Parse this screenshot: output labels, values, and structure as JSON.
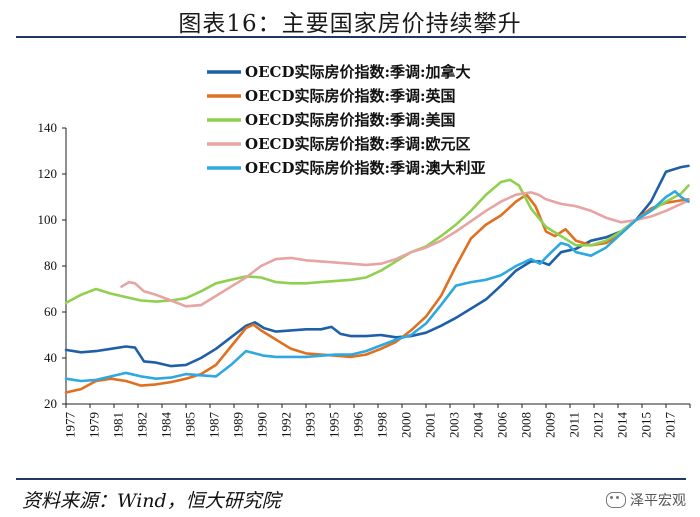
{
  "figure": {
    "title": "图表16：主要国家房价持续攀升",
    "source": "资料来源：Wind，恒大研究院",
    "watermark": "泽平宏观"
  },
  "chart_data": {
    "type": "line",
    "title": "图表16：主要国家房价持续攀升",
    "xlabel": "",
    "ylabel": "",
    "xlim": [
      1977,
      2018.6
    ],
    "ylim": [
      20,
      140
    ],
    "yticks": [
      20,
      40,
      60,
      80,
      100,
      120,
      140
    ],
    "xtick_labels": [
      "1977",
      "1979",
      "1981",
      "1982",
      "1984",
      "1985",
      "1987",
      "1989",
      "1990",
      "1992",
      "1993",
      "1995",
      "1996",
      "1998",
      "2000",
      "2001",
      "2003",
      "2004",
      "2006",
      "2008",
      "2009",
      "2011",
      "2012",
      "2014",
      "2015",
      "2017"
    ],
    "legend_position": "top-center",
    "series": [
      {
        "name": "OECD实际房价指数:季调:加拿大",
        "color": "#1f5fa8",
        "points": [
          [
            1977,
            43.5
          ],
          [
            1978,
            42.5
          ],
          [
            1979,
            43
          ],
          [
            1980,
            44
          ],
          [
            1981,
            45
          ],
          [
            1981.6,
            44.5
          ],
          [
            1982.2,
            38.5
          ],
          [
            1983,
            38
          ],
          [
            1984,
            36.5
          ],
          [
            1985,
            37
          ],
          [
            1986,
            40
          ],
          [
            1987,
            44
          ],
          [
            1988,
            49
          ],
          [
            1989,
            54
          ],
          [
            1989.6,
            55.5
          ],
          [
            1990.2,
            53
          ],
          [
            1991,
            51.5
          ],
          [
            1992,
            52
          ],
          [
            1993,
            52.5
          ],
          [
            1994,
            52.5
          ],
          [
            1994.7,
            53.5
          ],
          [
            1995.3,
            50.5
          ],
          [
            1996,
            49.5
          ],
          [
            1997,
            49.5
          ],
          [
            1998,
            50
          ],
          [
            1999,
            49
          ],
          [
            2000,
            49.5
          ],
          [
            2001,
            51
          ],
          [
            2002,
            54
          ],
          [
            2003,
            57.5
          ],
          [
            2004,
            61.5
          ],
          [
            2005,
            65.5
          ],
          [
            2006,
            71.5
          ],
          [
            2007,
            78
          ],
          [
            2008,
            82
          ],
          [
            2008.6,
            82
          ],
          [
            2009.2,
            80.5
          ],
          [
            2010,
            86
          ],
          [
            2011,
            87.5
          ],
          [
            2012,
            91
          ],
          [
            2013,
            92.5
          ],
          [
            2014,
            95
          ],
          [
            2015,
            100
          ],
          [
            2016,
            108
          ],
          [
            2017,
            121
          ],
          [
            2018,
            123
          ],
          [
            2018.5,
            123.5
          ]
        ]
      },
      {
        "name": "OECD实际房价指数:季调:英国",
        "color": "#e07020",
        "points": [
          [
            1977,
            25
          ],
          [
            1978,
            26.5
          ],
          [
            1979,
            30
          ],
          [
            1980,
            31
          ],
          [
            1981,
            30
          ],
          [
            1982,
            28
          ],
          [
            1983,
            28.5
          ],
          [
            1984,
            29.5
          ],
          [
            1985,
            31
          ],
          [
            1986,
            33
          ],
          [
            1987,
            37
          ],
          [
            1988,
            45
          ],
          [
            1989,
            53
          ],
          [
            1989.5,
            54.5
          ],
          [
            1990,
            52
          ],
          [
            1991,
            48
          ],
          [
            1992,
            44
          ],
          [
            1993,
            42
          ],
          [
            1994,
            41.5
          ],
          [
            1995,
            41
          ],
          [
            1996,
            40.5
          ],
          [
            1997,
            41.5
          ],
          [
            1998,
            44
          ],
          [
            1999,
            47
          ],
          [
            2000,
            52
          ],
          [
            2001,
            58
          ],
          [
            2002,
            67
          ],
          [
            2003,
            80
          ],
          [
            2004,
            92
          ],
          [
            2005,
            98
          ],
          [
            2006,
            102
          ],
          [
            2007,
            108
          ],
          [
            2007.7,
            111
          ],
          [
            2008.3,
            106
          ],
          [
            2009,
            95
          ],
          [
            2009.6,
            93
          ],
          [
            2010.3,
            96
          ],
          [
            2011,
            91
          ],
          [
            2012,
            89
          ],
          [
            2013,
            90
          ],
          [
            2014,
            94
          ],
          [
            2015,
            100
          ],
          [
            2016,
            105
          ],
          [
            2017,
            107.5
          ],
          [
            2018,
            108.5
          ],
          [
            2018.5,
            109
          ]
        ]
      },
      {
        "name": "OECD实际房价指数:季调:美国",
        "color": "#8fd14f",
        "points": [
          [
            1977,
            64
          ],
          [
            1978,
            67.5
          ],
          [
            1979,
            70
          ],
          [
            1980,
            68
          ],
          [
            1981,
            66.5
          ],
          [
            1982,
            65
          ],
          [
            1983,
            64.5
          ],
          [
            1984,
            65
          ],
          [
            1985,
            66
          ],
          [
            1986,
            69
          ],
          [
            1987,
            72.5
          ],
          [
            1988,
            74
          ],
          [
            1989,
            75.5
          ],
          [
            1990,
            75
          ],
          [
            1991,
            73
          ],
          [
            1992,
            72.5
          ],
          [
            1993,
            72.5
          ],
          [
            1994,
            73
          ],
          [
            1995,
            73.5
          ],
          [
            1996,
            74
          ],
          [
            1997,
            75
          ],
          [
            1998,
            78
          ],
          [
            1999,
            82
          ],
          [
            2000,
            86
          ],
          [
            2001,
            88.5
          ],
          [
            2002,
            93
          ],
          [
            2003,
            98
          ],
          [
            2004,
            104
          ],
          [
            2005,
            111
          ],
          [
            2006,
            116.5
          ],
          [
            2006.6,
            117.5
          ],
          [
            2007.2,
            115
          ],
          [
            2008,
            105
          ],
          [
            2009,
            97
          ],
          [
            2010,
            93
          ],
          [
            2011,
            89
          ],
          [
            2012,
            89
          ],
          [
            2013,
            91
          ],
          [
            2014,
            95
          ],
          [
            2015,
            100
          ],
          [
            2016,
            104
          ],
          [
            2017,
            108
          ],
          [
            2018,
            111.5
          ],
          [
            2018.5,
            115
          ]
        ]
      },
      {
        "name": "OECD实际房价指数:季调:欧元区",
        "color": "#e8a3a3",
        "points": [
          [
            1980.7,
            71
          ],
          [
            1981.2,
            73
          ],
          [
            1981.6,
            72.5
          ],
          [
            1982.2,
            69
          ],
          [
            1983,
            67.5
          ],
          [
            1984,
            65
          ],
          [
            1985,
            62.5
          ],
          [
            1986,
            63
          ],
          [
            1987,
            67
          ],
          [
            1988,
            71
          ],
          [
            1989,
            75
          ],
          [
            1990,
            80
          ],
          [
            1991,
            83
          ],
          [
            1992,
            83.5
          ],
          [
            1993,
            82.5
          ],
          [
            1994,
            82
          ],
          [
            1995,
            81.5
          ],
          [
            1996,
            81
          ],
          [
            1997,
            80.5
          ],
          [
            1998,
            81
          ],
          [
            1999,
            83
          ],
          [
            2000,
            86
          ],
          [
            2001,
            88
          ],
          [
            2002,
            91
          ],
          [
            2003,
            95
          ],
          [
            2004,
            99.5
          ],
          [
            2005,
            104
          ],
          [
            2006,
            108
          ],
          [
            2007,
            111
          ],
          [
            2008,
            112
          ],
          [
            2008.5,
            111
          ],
          [
            2009,
            109
          ],
          [
            2010,
            107
          ],
          [
            2011,
            106
          ],
          [
            2012,
            104
          ],
          [
            2013,
            101
          ],
          [
            2014,
            99
          ],
          [
            2015,
            100
          ],
          [
            2016,
            101.5
          ],
          [
            2017,
            104
          ],
          [
            2018,
            107
          ],
          [
            2018.5,
            108.5
          ]
        ]
      },
      {
        "name": "OECD实际房价指数:季调:澳大利亚",
        "color": "#2ea8e0",
        "points": [
          [
            1977,
            31
          ],
          [
            1978,
            30
          ],
          [
            1979,
            30.5
          ],
          [
            1980,
            32
          ],
          [
            1981,
            33.5
          ],
          [
            1982,
            32
          ],
          [
            1983,
            31
          ],
          [
            1984,
            31.5
          ],
          [
            1985,
            33
          ],
          [
            1986,
            32.5
          ],
          [
            1987,
            32
          ],
          [
            1988,
            37
          ],
          [
            1989,
            43
          ],
          [
            1989.6,
            42
          ],
          [
            1990.2,
            41
          ],
          [
            1991,
            40.5
          ],
          [
            1992,
            40.5
          ],
          [
            1993,
            40.5
          ],
          [
            1994,
            41
          ],
          [
            1995,
            41.5
          ],
          [
            1996,
            41.5
          ],
          [
            1997,
            43
          ],
          [
            1998,
            45.5
          ],
          [
            1999,
            48
          ],
          [
            2000,
            50
          ],
          [
            2001,
            55
          ],
          [
            2002,
            63
          ],
          [
            2003,
            71.5
          ],
          [
            2004,
            73
          ],
          [
            2005,
            74
          ],
          [
            2006,
            76
          ],
          [
            2007,
            80
          ],
          [
            2008,
            83
          ],
          [
            2008.6,
            81
          ],
          [
            2009.2,
            85
          ],
          [
            2010,
            90
          ],
          [
            2010.5,
            89
          ],
          [
            2011,
            86
          ],
          [
            2012,
            84.5
          ],
          [
            2013,
            88
          ],
          [
            2014,
            94
          ],
          [
            2015,
            100
          ],
          [
            2016,
            104
          ],
          [
            2017,
            110
          ],
          [
            2017.6,
            112.5
          ],
          [
            2018,
            110
          ],
          [
            2018.5,
            108
          ]
        ]
      }
    ]
  }
}
